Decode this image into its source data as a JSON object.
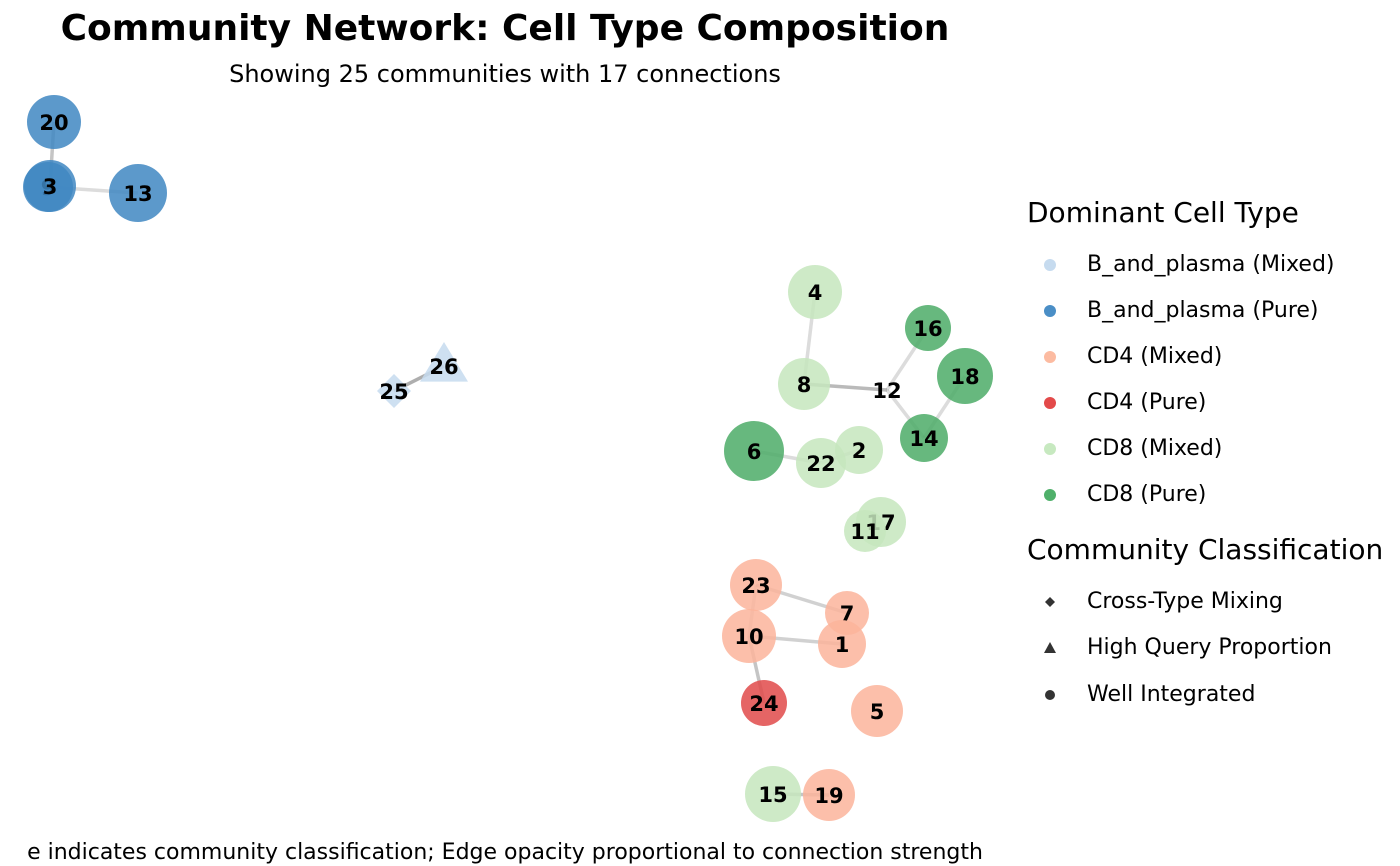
{
  "header": {
    "title": "Community Network: Cell Type Composition",
    "subtitle": "Showing 25 communities with 17 connections"
  },
  "caption": "e indicates community classification; Edge opacity proportional to connection strength",
  "legend": {
    "color_title": "Dominant Cell Type",
    "color_items": [
      {
        "label": "B_and_plasma (Mixed)",
        "color": "#c6dbef"
      },
      {
        "label": "B_and_plasma (Pure)",
        "color": "#4a8ec6"
      },
      {
        "label": "CD4 (Mixed)",
        "color": "#fcbba1"
      },
      {
        "label": "CD4 (Pure)",
        "color": "#e34a4a"
      },
      {
        "label": "CD8 (Mixed)",
        "color": "#c7e9c0"
      },
      {
        "label": "CD8 (Pure)",
        "color": "#4fb06a"
      }
    ],
    "shape_title": "Community Classification",
    "shape_items": [
      {
        "label": "Cross-Type Mixing",
        "shape": "diamond"
      },
      {
        "label": "High Query Proportion",
        "shape": "triangle"
      },
      {
        "label": "Well Integrated",
        "shape": "circle"
      }
    ]
  },
  "colors": {
    "B_and_plasma (Mixed)": "#c6dbef",
    "B_and_plasma (Pure)": "#3f87c2",
    "CD4 (Mixed)": "#fcb49b",
    "CD4 (Pure)": "#e04a4a",
    "CD8 (Mixed)": "#c5e6bd",
    "CD8 (Pure)": "#4cac67",
    "edge": "#8c8c8c"
  },
  "nodes": [
    {
      "id": "20",
      "type": "B_and_plasma (Pure)",
      "class": "Well Integrated"
    },
    {
      "id": "3",
      "type": "B_and_plasma (Pure)",
      "class": "Well Integrated"
    },
    {
      "id": "9",
      "type": "B_and_plasma (Pure)",
      "class": "Well Integrated"
    },
    {
      "id": "13",
      "type": "B_and_plasma (Pure)",
      "class": "Well Integrated"
    },
    {
      "id": "25",
      "type": "B_and_plasma (Mixed)",
      "class": "Cross-Type Mixing"
    },
    {
      "id": "26",
      "type": "B_and_plasma (Mixed)",
      "class": "High Query Proportion"
    },
    {
      "id": "4",
      "type": "CD8 (Mixed)",
      "class": "Well Integrated"
    },
    {
      "id": "8",
      "type": "CD8 (Mixed)",
      "class": "Well Integrated"
    },
    {
      "id": "12",
      "type": "CD8 (Mixed)",
      "class": "Cross-Type Mixing"
    },
    {
      "id": "16",
      "type": "CD8 (Pure)",
      "class": "Well Integrated"
    },
    {
      "id": "18",
      "type": "CD8 (Pure)",
      "class": "Well Integrated"
    },
    {
      "id": "14",
      "type": "CD8 (Pure)",
      "class": "Well Integrated"
    },
    {
      "id": "6",
      "type": "CD8 (Pure)",
      "class": "Well Integrated"
    },
    {
      "id": "22",
      "type": "CD8 (Mixed)",
      "class": "Well Integrated"
    },
    {
      "id": "2",
      "type": "CD8 (Mixed)",
      "class": "Well Integrated"
    },
    {
      "id": "17",
      "type": "CD8 (Mixed)",
      "class": "Well Integrated"
    },
    {
      "id": "11",
      "type": "CD8 (Mixed)",
      "class": "Well Integrated"
    },
    {
      "id": "23",
      "type": "CD4 (Mixed)",
      "class": "Well Integrated"
    },
    {
      "id": "7",
      "type": "CD4 (Mixed)",
      "class": "Well Integrated"
    },
    {
      "id": "10",
      "type": "CD4 (Mixed)",
      "class": "Well Integrated"
    },
    {
      "id": "1",
      "type": "CD4 (Mixed)",
      "class": "Well Integrated"
    },
    {
      "id": "24",
      "type": "CD4 (Pure)",
      "class": "Well Integrated"
    },
    {
      "id": "5",
      "type": "CD4 (Mixed)",
      "class": "Well Integrated"
    },
    {
      "id": "15",
      "type": "CD8 (Mixed)",
      "class": "Well Integrated"
    },
    {
      "id": "19",
      "type": "CD4 (Mixed)",
      "class": "Well Integrated"
    }
  ],
  "edges": [
    {
      "source": "20",
      "target": "3",
      "strength": 0.5
    },
    {
      "source": "3",
      "target": "9",
      "strength": 0.5
    },
    {
      "source": "9",
      "target": "13",
      "strength": 0.3
    },
    {
      "source": "25",
      "target": "26",
      "strength": 0.7
    },
    {
      "source": "4",
      "target": "8",
      "strength": 0.3
    },
    {
      "source": "8",
      "target": "12",
      "strength": 0.6
    },
    {
      "source": "12",
      "target": "16",
      "strength": 0.3
    },
    {
      "source": "18",
      "target": "14",
      "strength": 0.3
    },
    {
      "source": "6",
      "target": "22",
      "strength": 0.3
    },
    {
      "source": "22",
      "target": "2",
      "strength": 0.3
    },
    {
      "source": "17",
      "target": "11",
      "strength": 0.3
    },
    {
      "source": "23",
      "target": "7",
      "strength": 0.4
    },
    {
      "source": "10",
      "target": "1",
      "strength": 0.4
    },
    {
      "source": "10",
      "target": "24",
      "strength": 0.5
    },
    {
      "source": "23",
      "target": "10",
      "strength": 0.3
    },
    {
      "source": "15",
      "target": "19",
      "strength": 0.5
    },
    {
      "source": "12",
      "target": "14",
      "strength": 0.3
    }
  ]
}
